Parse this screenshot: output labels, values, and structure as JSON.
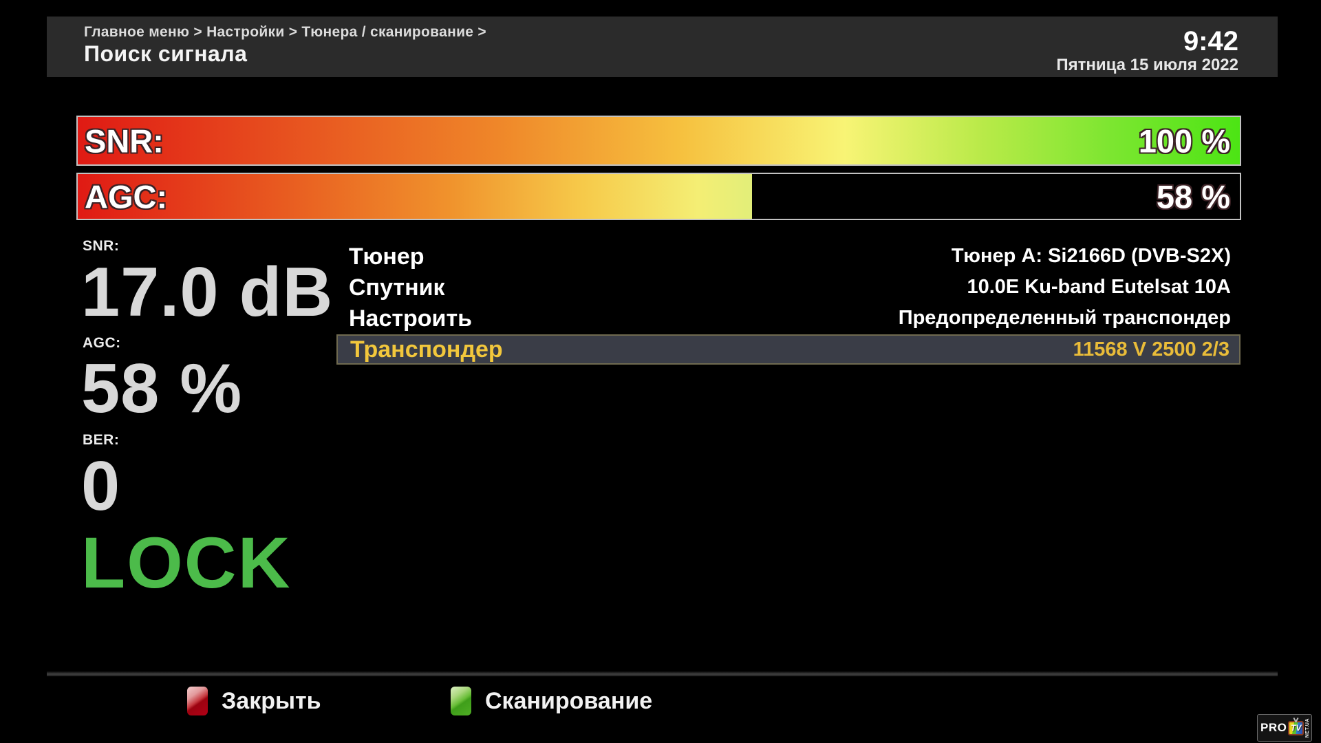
{
  "header": {
    "breadcrumb": "Главное меню > Настройки > Тюнера / сканирование >",
    "title": "Поиск сигнала",
    "time": "9:42",
    "date": "Пятница 15 июля 2022"
  },
  "bars": {
    "snr": {
      "label": "SNR:",
      "value_text": "100 %",
      "percent": 100
    },
    "agc": {
      "label": "AGC:",
      "value_text": "58 %",
      "percent": 58
    }
  },
  "metrics": {
    "snr": {
      "label": "SNR:",
      "value": "17.0 dB"
    },
    "agc": {
      "label": "AGC:",
      "value": "58 %"
    },
    "ber": {
      "label": "BER:",
      "value": "0"
    },
    "lock": {
      "text": "LOCK",
      "color": "#4cbb4a"
    }
  },
  "settings": {
    "rows": [
      {
        "label": "Тюнер",
        "value": "Тюнер A: Si2166D (DVB-S2X)",
        "selected": false
      },
      {
        "label": "Спутник",
        "value": "10.0E Ku-band Eutelsat 10A",
        "selected": false
      },
      {
        "label": "Настроить",
        "value": "Предопределенный транспондер",
        "selected": false
      },
      {
        "label": "Транспондер",
        "value": "11568 V 2500 2/3",
        "selected": true
      }
    ],
    "highlight_color": "#f2c73c"
  },
  "footer": {
    "buttons": [
      {
        "icon": "red-key-icon",
        "label": "Закрыть",
        "key_color": "#b00016"
      },
      {
        "icon": "green-key-icon",
        "label": "Сканирование",
        "key_color": "#4fae24"
      }
    ]
  },
  "logo": {
    "pro": "PRO",
    "tv": "TV",
    "net": "NET.UA"
  }
}
